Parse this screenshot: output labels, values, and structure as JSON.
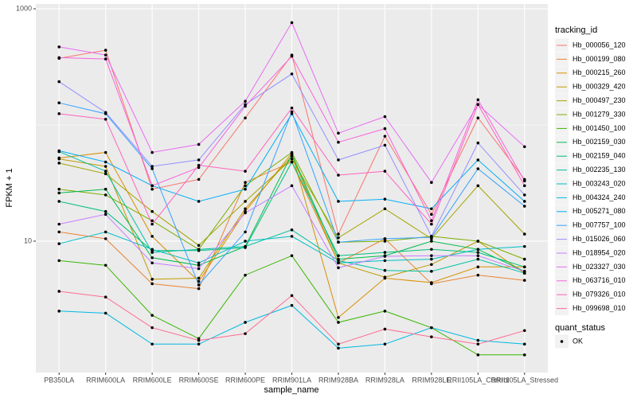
{
  "chart_data": {
    "type": "line",
    "x_label": "sample_name",
    "y_label": "FPKM + 1",
    "log_scale": true,
    "grid": true,
    "legend_title": "tracking_id",
    "legend_position": "right",
    "point_color": "#000000",
    "shape_legend": {
      "title": "quant_status",
      "labels": [
        "OK"
      ]
    },
    "categories": [
      "PB350LA",
      "RRIM600LA",
      "RRIM600LE",
      "RRIM600SE",
      "RRIM600PE",
      "RRIM901LA",
      "RRIM928BA",
      "RRIM928LA",
      "RRIM928LE",
      "RRII105LA_Control",
      "RRII105LA_Stressed"
    ],
    "ylim": [
      0.74,
      1100
    ],
    "yticks": [
      10,
      1000
    ],
    "series": [
      {
        "name": "Hb_000056_120",
        "color": "#F8766D",
        "values": [
          375,
          440,
          28,
          34,
          115,
          400,
          11.5,
          80,
          17,
          115,
          34
        ]
      },
      {
        "name": "Hb_000199_080",
        "color": "#EA8331",
        "values": [
          12,
          10.5,
          4.3,
          3.9,
          32,
          48,
          6.5,
          10.5,
          4.3,
          5.1,
          4.6
        ]
      },
      {
        "name": "Hb_000215_260",
        "color": "#D89000",
        "values": [
          52,
          58,
          11,
          4.5,
          18,
          57,
          2.2,
          4.8,
          4.4,
          6,
          6
        ]
      },
      {
        "name": "Hb_000329_420",
        "color": "#C09B00",
        "values": [
          51,
          44,
          4.7,
          4.8,
          19,
          54,
          6.5,
          4.9,
          6.3,
          10,
          5.3
        ]
      },
      {
        "name": "Hb_000497_230",
        "color": "#A3A500",
        "values": [
          47,
          38,
          18,
          9.2,
          22,
          51,
          10.7,
          19,
          10.5,
          30,
          11.5
        ]
      },
      {
        "name": "Hb_001279_330",
        "color": "#7CAE00",
        "values": [
          28,
          25,
          15,
          8.5,
          30,
          58,
          9.8,
          10,
          11,
          10,
          7
        ]
      },
      {
        "name": "Hb_001450_100",
        "color": "#39B600",
        "values": [
          6.8,
          6.2,
          2.3,
          1.45,
          5.1,
          7.5,
          2.0,
          2.5,
          1.8,
          1.05,
          1.05
        ]
      },
      {
        "name": "Hb_002159_030",
        "color": "#00BB4E",
        "values": [
          26,
          28,
          7.2,
          6.2,
          9,
          56,
          7,
          7.5,
          10,
          8.5,
          5.5
        ]
      },
      {
        "name": "Hb_002159_040",
        "color": "#00BF7D",
        "values": [
          22,
          18,
          8.3,
          8.3,
          8.8,
          48,
          7.5,
          8,
          8.5,
          8,
          6
        ]
      },
      {
        "name": "Hb_002235_130",
        "color": "#00C1A3",
        "values": [
          59,
          40,
          8.0,
          8.5,
          9.0,
          12.5,
          6.8,
          5.6,
          5.5,
          7,
          5.3
        ]
      },
      {
        "name": "Hb_003243_020",
        "color": "#00BFC4",
        "values": [
          9.5,
          12,
          8.5,
          6.5,
          10,
          11,
          6.5,
          6.8,
          7,
          8.5,
          9
        ]
      },
      {
        "name": "Hb_004324_240",
        "color": "#00BAE0",
        "values": [
          2.5,
          2.4,
          1.3,
          1.3,
          2.0,
          2.8,
          1.2,
          1.3,
          1.8,
          1.4,
          1.3
        ]
      },
      {
        "name": "Hb_005271_080",
        "color": "#00B0F6",
        "values": [
          60,
          48,
          30,
          22,
          28,
          125,
          22,
          23,
          19,
          50,
          22
        ]
      },
      {
        "name": "Hb_007757_100",
        "color": "#35A2FF",
        "values": [
          155,
          125,
          42,
          4.2,
          12,
          130,
          9.8,
          10.5,
          10.8,
          42,
          20
        ]
      },
      {
        "name": "Hb_015026_060",
        "color": "#9590FF",
        "values": [
          236,
          128,
          44,
          50,
          150,
          275,
          50,
          67,
          11,
          70,
          25
        ]
      },
      {
        "name": "Hb_018954_020",
        "color": "#C77CFF",
        "values": [
          14,
          17,
          6.5,
          5.8,
          17.5,
          30,
          5.9,
          7.4,
          7.5,
          7.5,
          5.5
        ]
      },
      {
        "name": "Hb_023327_030",
        "color": "#E76BF3",
        "values": [
          470,
          400,
          58,
          68,
          160,
          760,
          85,
          118,
          32,
          150,
          65
        ]
      },
      {
        "name": "Hb_063716_010",
        "color": "#FA62DB",
        "values": [
          380,
          370,
          30,
          43,
          145,
          390,
          71,
          93,
          15,
          165,
          33
        ]
      },
      {
        "name": "Hb_079326_010",
        "color": "#FF62BC",
        "values": [
          125,
          112,
          14,
          45,
          40,
          140,
          37,
          40,
          14,
          150,
          30
        ]
      },
      {
        "name": "Hb_099698_010",
        "color": "#FF6C91",
        "values": [
          3.7,
          3.3,
          1.8,
          1.4,
          1.6,
          3.4,
          1.3,
          1.75,
          1.5,
          1.3,
          1.7
        ]
      }
    ]
  }
}
